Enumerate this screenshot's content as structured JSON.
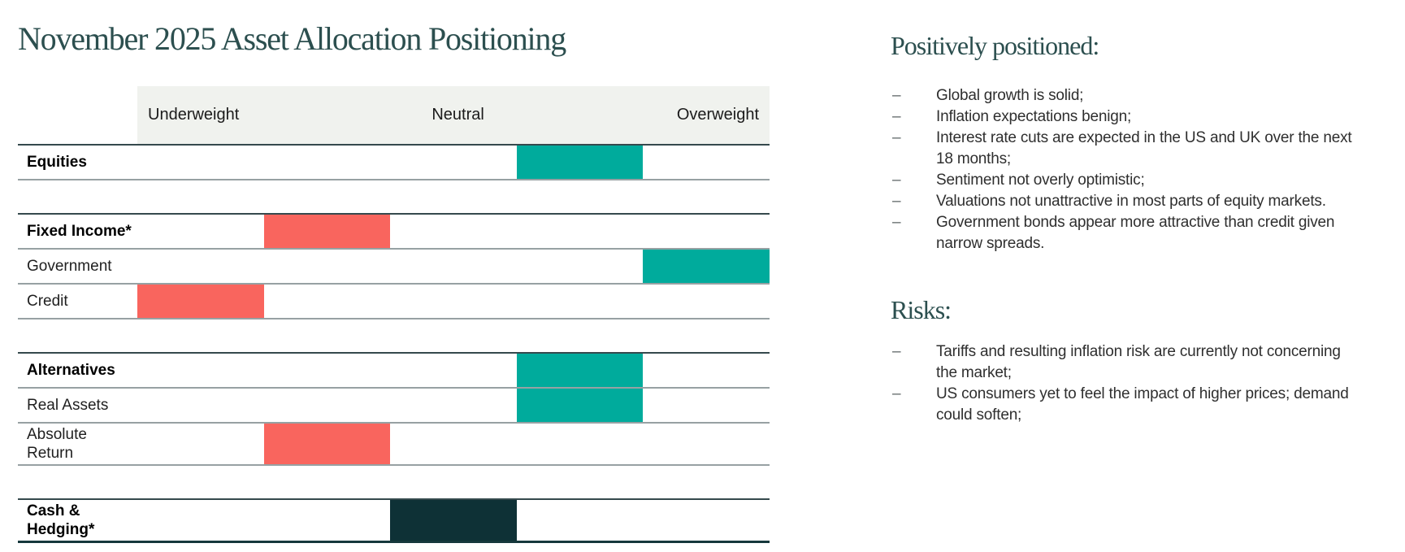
{
  "chart_data": {
    "type": "positioning-matrix",
    "title": "November 2025 Asset Allocation Positioning",
    "column_headers": [
      "Underweight",
      "Neutral",
      "Overweight"
    ],
    "scale": {
      "slots": 5,
      "min": -2,
      "max": 2
    },
    "colors": {
      "overweight": "#00ab9c",
      "underweight": "#f9655e",
      "neutral": "#0e3136"
    },
    "layout": {
      "grid": "off",
      "header_band_color": "#f0f2ee",
      "legend": "none"
    },
    "sections": [
      {
        "rows": [
          {
            "label": "Equities",
            "bold": true,
            "position": 1,
            "stance": "overweight"
          }
        ]
      },
      {
        "rows": [
          {
            "label": "Fixed Income*",
            "bold": true,
            "position": -1,
            "stance": "underweight"
          },
          {
            "label": "Government",
            "bold": false,
            "position": 2,
            "stance": "overweight"
          },
          {
            "label": "Credit",
            "bold": false,
            "position": -2,
            "stance": "underweight"
          }
        ]
      },
      {
        "rows": [
          {
            "label": "Alternatives",
            "bold": true,
            "position": 1,
            "stance": "overweight"
          },
          {
            "label": "Real Assets",
            "bold": false,
            "position": 1,
            "stance": "overweight"
          },
          {
            "label": "Absolute Return",
            "bold": false,
            "position": -1,
            "stance": "underweight"
          }
        ]
      },
      {
        "rows": [
          {
            "label": "Cash & Hedging*",
            "label_lines": [
              "Cash &",
              "Hedging*"
            ],
            "bold": true,
            "position": 0,
            "stance": "neutral"
          }
        ]
      }
    ]
  },
  "right_panel": {
    "bullet_glyph": "–",
    "sections": [
      {
        "heading": "Positively positioned:",
        "items": [
          "Global growth is solid;",
          "Inflation expectations benign;",
          "Interest rate cuts are expected in the US and UK over the next 18 months;",
          "Sentiment not overly optimistic;",
          "Valuations not unattractive in most parts of equity markets.",
          "Government bonds appear more attractive than credit given narrow spreads."
        ]
      },
      {
        "heading": "Risks:",
        "items": [
          "Tariffs and resulting inflation risk are currently not concerning the market;",
          "US consumers yet to feel the impact of higher prices; demand could soften;"
        ]
      }
    ]
  }
}
